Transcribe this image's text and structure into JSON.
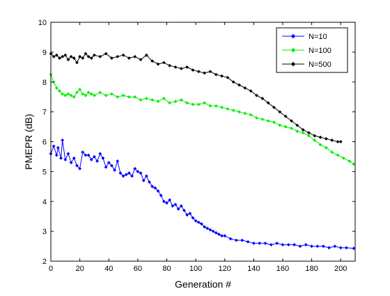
{
  "chart_data": {
    "type": "line",
    "title": "",
    "xlabel": "Generation #",
    "ylabel": "PMEPR (dB)",
    "xlim": [
      0,
      210
    ],
    "ylim": [
      2,
      10
    ],
    "x_ticks": [
      0,
      20,
      40,
      60,
      80,
      100,
      120,
      140,
      160,
      180,
      200
    ],
    "y_ticks": [
      2,
      3,
      4,
      5,
      6,
      7,
      8,
      9,
      10
    ],
    "x_tick_labels": [
      "0",
      "20",
      "40",
      "60",
      "80",
      "100",
      "120",
      "140",
      "160",
      "180",
      "200"
    ],
    "y_tick_labels": [
      "2",
      "3",
      "4",
      "5",
      "6",
      "7",
      "8",
      "9",
      "10"
    ],
    "grid": false,
    "legend_position": "top-right",
    "series": [
      {
        "name": "N=10",
        "color": "#0000ff",
        "marker": "diamond",
        "x": [
          0,
          2,
          4,
          5,
          7,
          8,
          10,
          12,
          14,
          16,
          18,
          20,
          22,
          24,
          26,
          28,
          30,
          32,
          34,
          36,
          38,
          40,
          42,
          44,
          46,
          48,
          50,
          52,
          54,
          56,
          58,
          60,
          62,
          64,
          66,
          68,
          70,
          72,
          74,
          76,
          78,
          80,
          82,
          84,
          86,
          88,
          90,
          92,
          94,
          96,
          98,
          100,
          102,
          104,
          106,
          108,
          110,
          112,
          114,
          116,
          118,
          120,
          124,
          128,
          132,
          136,
          140,
          144,
          148,
          152,
          156,
          160,
          164,
          168,
          172,
          176,
          180,
          184,
          188,
          192,
          196,
          200,
          204,
          209
        ],
        "y": [
          5.6,
          5.85,
          5.55,
          5.8,
          5.45,
          6.05,
          5.4,
          5.6,
          5.3,
          5.45,
          5.2,
          5.1,
          5.65,
          5.55,
          5.55,
          5.4,
          5.5,
          5.35,
          5.6,
          5.45,
          5.15,
          5.3,
          5.2,
          5.05,
          5.35,
          4.95,
          4.85,
          4.9,
          4.95,
          4.85,
          5.1,
          5.0,
          4.95,
          4.7,
          4.85,
          4.65,
          4.5,
          4.45,
          4.35,
          4.2,
          4.0,
          3.95,
          4.05,
          3.85,
          3.9,
          3.75,
          3.85,
          3.7,
          3.55,
          3.6,
          3.45,
          3.35,
          3.3,
          3.25,
          3.15,
          3.1,
          3.05,
          3.0,
          2.95,
          2.9,
          2.85,
          2.85,
          2.75,
          2.7,
          2.7,
          2.65,
          2.6,
          2.6,
          2.6,
          2.55,
          2.6,
          2.55,
          2.55,
          2.55,
          2.5,
          2.55,
          2.5,
          2.5,
          2.5,
          2.45,
          2.5,
          2.45,
          2.45,
          2.43
        ]
      },
      {
        "name": "N=100",
        "color": "#00ee00",
        "marker": "diamond",
        "x": [
          0,
          2,
          4,
          6,
          8,
          10,
          12,
          14,
          16,
          18,
          20,
          22,
          24,
          26,
          28,
          30,
          34,
          38,
          42,
          46,
          50,
          54,
          58,
          62,
          66,
          70,
          74,
          78,
          82,
          86,
          90,
          94,
          98,
          102,
          106,
          110,
          114,
          118,
          122,
          126,
          130,
          134,
          138,
          142,
          146,
          150,
          154,
          158,
          162,
          166,
          170,
          174,
          178,
          182,
          186,
          190,
          194,
          198,
          202,
          206,
          209
        ],
        "y": [
          8.25,
          8.0,
          7.8,
          7.7,
          7.6,
          7.55,
          7.6,
          7.55,
          7.5,
          7.65,
          7.75,
          7.6,
          7.55,
          7.65,
          7.6,
          7.55,
          7.65,
          7.55,
          7.6,
          7.5,
          7.55,
          7.5,
          7.5,
          7.4,
          7.45,
          7.4,
          7.35,
          7.45,
          7.3,
          7.35,
          7.4,
          7.3,
          7.25,
          7.25,
          7.3,
          7.2,
          7.2,
          7.15,
          7.1,
          7.05,
          7.0,
          6.95,
          6.9,
          6.8,
          6.75,
          6.7,
          6.65,
          6.55,
          6.5,
          6.45,
          6.35,
          6.3,
          6.2,
          6.05,
          5.9,
          5.8,
          5.65,
          5.55,
          5.45,
          5.35,
          5.25
        ]
      },
      {
        "name": "N=500",
        "color": "#000000",
        "marker": "diamond",
        "x": [
          0,
          2,
          4,
          6,
          8,
          10,
          12,
          14,
          16,
          18,
          20,
          22,
          24,
          26,
          28,
          30,
          34,
          38,
          42,
          46,
          50,
          54,
          58,
          62,
          66,
          70,
          74,
          78,
          82,
          86,
          90,
          94,
          98,
          102,
          106,
          110,
          114,
          118,
          122,
          126,
          130,
          134,
          138,
          142,
          146,
          150,
          154,
          158,
          162,
          166,
          170,
          174,
          178,
          182,
          186,
          190,
          194,
          198,
          200
        ],
        "y": [
          8.95,
          8.85,
          8.9,
          8.8,
          8.85,
          8.9,
          8.75,
          8.85,
          8.8,
          8.65,
          8.85,
          8.8,
          8.95,
          8.85,
          8.8,
          8.9,
          8.85,
          8.95,
          8.8,
          8.85,
          8.9,
          8.8,
          8.85,
          8.75,
          8.9,
          8.7,
          8.6,
          8.65,
          8.55,
          8.5,
          8.45,
          8.5,
          8.4,
          8.35,
          8.3,
          8.35,
          8.25,
          8.2,
          8.15,
          8.0,
          7.9,
          7.8,
          7.7,
          7.55,
          7.45,
          7.3,
          7.15,
          7.0,
          6.85,
          6.7,
          6.55,
          6.4,
          6.3,
          6.2,
          6.15,
          6.1,
          6.05,
          6.0,
          6.0
        ]
      }
    ]
  }
}
